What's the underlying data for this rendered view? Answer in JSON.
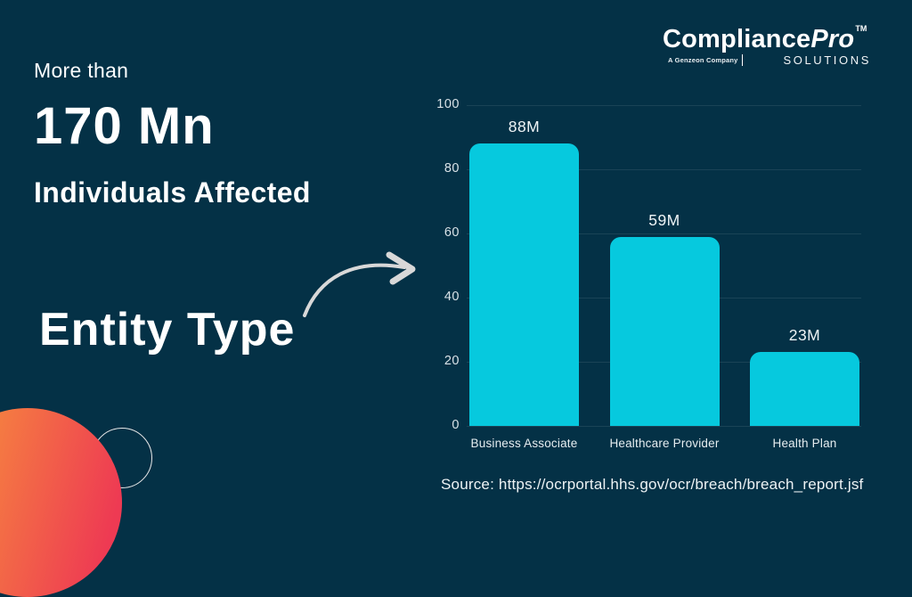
{
  "logo": {
    "brand_main": "Compliance",
    "brand_italic": "Pro",
    "trademark": "TM",
    "tagline": "A Genzeon Company",
    "solutions": "SOLUTIONS"
  },
  "headline": {
    "pre": "More than",
    "number": "170 Mn",
    "post": "Individuals Affected"
  },
  "callout": {
    "label": "Entity Type"
  },
  "chart_data": {
    "type": "bar",
    "title": "",
    "xlabel": "",
    "ylabel": "",
    "categories": [
      "Business Associate",
      "Healthcare Provider",
      "Health Plan"
    ],
    "values": [
      88,
      59,
      23
    ],
    "value_labels": [
      "88M",
      "59M",
      "23M"
    ],
    "yticks": [
      0,
      20,
      40,
      60,
      80,
      100
    ],
    "ylim": [
      0,
      100
    ],
    "grid": true,
    "legend": "none",
    "bar_color": "#06C9DE"
  },
  "source": {
    "text": "Source: https://ocrportal.hhs.gov/ocr/breach/breach_report.jsf"
  },
  "colors": {
    "background": "#043146",
    "bar": "#06C9DE",
    "text": "#FFFFFF",
    "arrow": "#D8D8D8",
    "accent_gradient_start": "#F7923C",
    "accent_gradient_end": "#EE3A53"
  }
}
